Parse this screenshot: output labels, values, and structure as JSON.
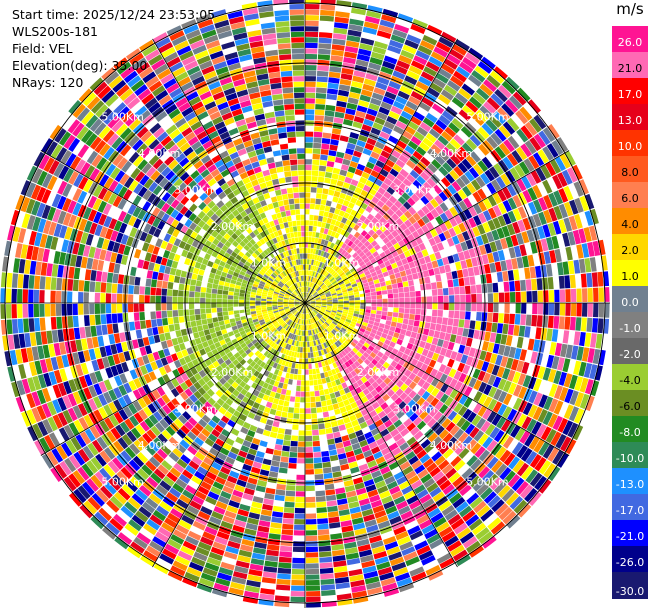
{
  "info": {
    "start_time": "Start time: 2025/12/24 23:53:05",
    "instrument": "WLS200s-181",
    "field": "Field: VEL",
    "elevation": "Elevation(deg): 35.00",
    "nrays": "NRays: 120"
  },
  "chart_data": {
    "type": "polar-ppi",
    "field": "VEL",
    "elevation_deg": 35.0,
    "n_rays": 120,
    "max_range_km": 5.0,
    "range_ring_labels": [
      "1.0Km",
      "2.00Km",
      "3.00Km",
      "4.00Km",
      "5.00Km"
    ],
    "range_rings_km": [
      1,
      2,
      3,
      4,
      5
    ],
    "grid": true,
    "colorbar": {
      "unit": "m/s",
      "levels": [
        "26.0",
        "21.0",
        "17.0",
        "13.0",
        "10.0",
        "8.0",
        "6.0",
        "4.0",
        "2.0",
        "1.0",
        "0.0",
        "-1.0",
        "-2.0",
        "-4.0",
        "-6.0",
        "-8.0",
        "-10.0",
        "-13.0",
        "-17.0",
        "-21.0",
        "-26.0",
        "-30.0"
      ],
      "colors": [
        "#ff1493",
        "#ff69b4",
        "#ff0000",
        "#e6001a",
        "#ff3300",
        "#ff5a1f",
        "#ff7f50",
        "#ff8c00",
        "#ffd700",
        "#ffff00",
        "#708090",
        "#808080",
        "#696969",
        "#9acd32",
        "#6b8e23",
        "#228b22",
        "#2e8b57",
        "#1e90ff",
        "#4169e1",
        "#0000ff",
        "#00008b",
        "#191970"
      ]
    }
  }
}
